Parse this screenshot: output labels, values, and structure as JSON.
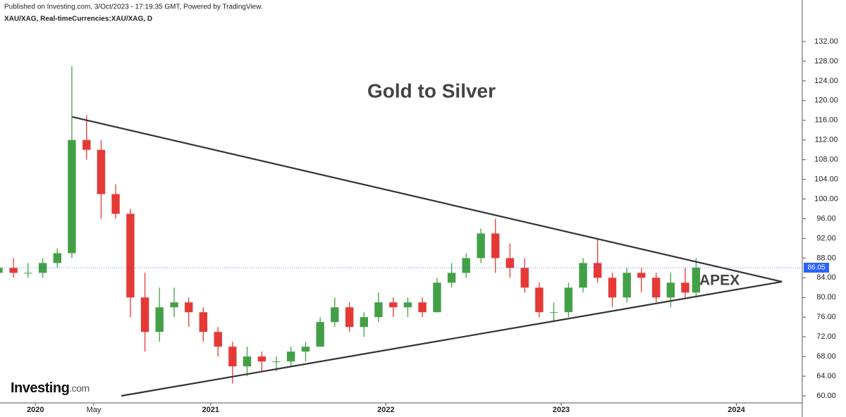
{
  "header": {
    "published": "Published on Investing.com, 3/Oct/2023 - 17:19:35 GMT, Powered by TradingView.",
    "symbol": "XAU/XAG, Real-timeCurrencies:XAU/XAG, D"
  },
  "logo": [
    "Investing",
    ".com"
  ],
  "chart_data": {
    "type": "candlestick",
    "title": "Gold to Silver",
    "annotation": "APEX",
    "x": [
      2019.79,
      2019.875,
      2019.958,
      2020.042,
      2020.125,
      2020.208,
      2020.292,
      2020.375,
      2020.458,
      2020.542,
      2020.625,
      2020.708,
      2020.792,
      2020.875,
      2020.958,
      2021.042,
      2021.125,
      2021.208,
      2021.292,
      2021.375,
      2021.458,
      2021.542,
      2021.625,
      2021.708,
      2021.792,
      2021.875,
      2021.958,
      2022.042,
      2022.125,
      2022.208,
      2022.292,
      2022.375,
      2022.458,
      2022.542,
      2022.625,
      2022.708,
      2022.792,
      2022.875,
      2022.958,
      2023.042,
      2023.125,
      2023.208,
      2023.292,
      2023.375,
      2023.458,
      2023.542,
      2023.625,
      2023.708,
      2023.77
    ],
    "open": [
      85,
      86,
      85,
      85,
      87,
      89,
      112,
      110,
      101,
      97,
      80,
      73,
      78,
      79,
      77,
      73,
      70,
      66,
      68,
      67,
      67,
      69,
      70,
      75,
      78,
      74,
      76,
      79,
      78,
      79,
      77,
      83,
      85,
      88,
      93,
      88,
      86,
      82,
      77,
      77,
      82,
      87,
      84,
      80,
      85,
      84,
      80,
      83,
      81
    ],
    "high": [
      87,
      88,
      87,
      88,
      90,
      127,
      117,
      112,
      103,
      98,
      85,
      82,
      82,
      80,
      78,
      74,
      71,
      70,
      69,
      68,
      70,
      71,
      76,
      80,
      79,
      77,
      81,
      80,
      80,
      80,
      84,
      87,
      89,
      94,
      96,
      91,
      88,
      83,
      79,
      83,
      88,
      92,
      85,
      86,
      86,
      85,
      85,
      86,
      88
    ],
    "low": [
      83,
      84,
      84,
      84,
      86,
      88,
      108,
      96,
      96,
      76,
      69,
      71,
      76,
      74,
      71,
      68,
      62.5,
      64,
      65,
      65,
      66,
      67,
      70,
      74,
      73,
      72,
      75,
      76,
      76,
      76,
      77,
      82,
      84,
      87,
      85,
      84,
      81,
      76,
      75,
      76,
      81,
      83,
      78,
      79,
      81,
      79,
      78,
      80,
      80
    ],
    "close": [
      86,
      85,
      85,
      87,
      89,
      112,
      110,
      101,
      97,
      80,
      73,
      78,
      79,
      77,
      73,
      70,
      66,
      68,
      67,
      67,
      69,
      70,
      75,
      78,
      74,
      76,
      79,
      78,
      79,
      77,
      83,
      85,
      88,
      93,
      88,
      86,
      82,
      77,
      77,
      82,
      87,
      84,
      80,
      85,
      84,
      80,
      83,
      81,
      86.05
    ],
    "up_color": "#43a047",
    "down_color": "#e53935",
    "trendlines": [
      {
        "x": [
          2020.21,
          2024.26
        ],
        "y": [
          116.7,
          83.2
        ]
      },
      {
        "x": [
          2020.49,
          2024.26
        ],
        "y": [
          60,
          83.2
        ]
      }
    ],
    "last_price": 86.05,
    "xlim": [
      2019.798,
      2024.376
    ],
    "ylim": [
      58.57,
      139.3
    ],
    "xticks": [
      {
        "value": 2020,
        "label": "2020"
      },
      {
        "value": 2020.333,
        "label": "May"
      },
      {
        "value": 2021,
        "label": "2021"
      },
      {
        "value": 2022,
        "label": "2022"
      },
      {
        "value": 2023,
        "label": "2023"
      },
      {
        "value": 2024,
        "label": "2024"
      }
    ],
    "yticks": [
      {
        "value": 60,
        "label": "60.00"
      },
      {
        "value": 64,
        "label": "64.00"
      },
      {
        "value": 68,
        "label": "68.00"
      },
      {
        "value": 72,
        "label": "72.00"
      },
      {
        "value": 76,
        "label": "76.00"
      },
      {
        "value": 80,
        "label": "80.00"
      },
      {
        "value": 84,
        "label": "84.00"
      },
      {
        "value": 88,
        "label": "88.00"
      },
      {
        "value": 92,
        "label": "92.00"
      },
      {
        "value": 96,
        "label": "96.00"
      },
      {
        "value": 100,
        "label": "100.00"
      },
      {
        "value": 104,
        "label": "104.00"
      },
      {
        "value": 108,
        "label": "108.00"
      },
      {
        "value": 112,
        "label": "112.00"
      },
      {
        "value": 116,
        "label": "116.00"
      },
      {
        "value": 120,
        "label": "120.00"
      },
      {
        "value": 124,
        "label": "124.00"
      },
      {
        "value": 128,
        "label": "128.00"
      },
      {
        "value": 132,
        "label": "132.00"
      }
    ]
  }
}
